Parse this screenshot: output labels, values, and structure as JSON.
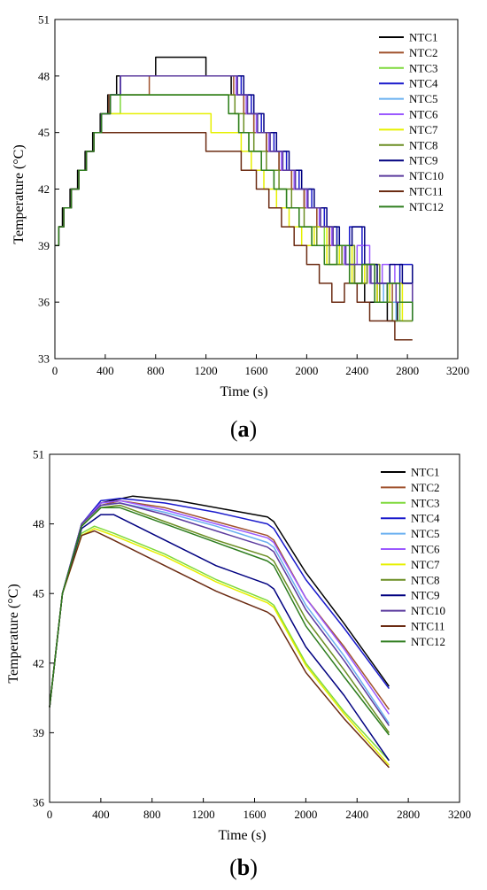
{
  "chart_data": [
    {
      "panel": "a",
      "type": "line",
      "step": true,
      "xlabel": "Time (s)",
      "ylabel": "Temperature (°C)",
      "xlim": [
        0,
        3200
      ],
      "ylim": [
        33,
        51
      ],
      "xticks": [
        0,
        400,
        800,
        1200,
        1600,
        2000,
        2400,
        2800,
        3200
      ],
      "yticks": [
        33,
        36,
        39,
        42,
        45,
        48,
        51
      ],
      "legend_position": "top-right",
      "series": [
        {
          "name": "NTC1",
          "color": "#000000",
          "x": [
            0,
            30,
            60,
            120,
            180,
            240,
            300,
            360,
            420,
            490,
            800,
            1200,
            1400,
            1500,
            1580,
            1680,
            1780,
            1880,
            1980,
            2080,
            2180,
            2280,
            2380,
            2460,
            2560,
            2640,
            2720,
            2840
          ],
          "y": [
            39,
            40,
            41,
            42,
            43,
            44,
            45,
            46,
            47,
            48,
            49,
            48,
            47,
            46,
            45,
            44,
            43,
            42,
            41,
            40,
            39,
            38,
            37,
            36,
            37,
            35,
            36,
            35
          ]
        },
        {
          "name": "NTC2",
          "color": "#a0522d",
          "x": [
            0,
            30,
            70,
            130,
            190,
            250,
            310,
            370,
            430,
            500,
            750,
            1420,
            1500,
            1580,
            1680,
            1780,
            1880,
            1980,
            2080,
            2180,
            2280,
            2380,
            2480,
            2580,
            2680,
            2780,
            2840
          ],
          "y": [
            39,
            40,
            41,
            42,
            43,
            44,
            45,
            46,
            47,
            47,
            48,
            47,
            46,
            45,
            44,
            43,
            42,
            41,
            40,
            39,
            38,
            37,
            38,
            36,
            37,
            37,
            37
          ]
        },
        {
          "name": "NTC3",
          "color": "#7fd93c",
          "x": [
            0,
            30,
            70,
            130,
            190,
            250,
            310,
            370,
            430,
            520,
            1200,
            1380,
            1460,
            1540,
            1640,
            1740,
            1840,
            1940,
            2040,
            2140,
            2240,
            2340,
            2440,
            2540,
            2640,
            2740,
            2840
          ],
          "y": [
            39,
            40,
            41,
            42,
            43,
            44,
            45,
            46,
            46,
            47,
            47,
            46,
            45,
            44,
            43,
            42,
            41,
            40,
            39,
            40,
            38,
            37,
            38,
            36,
            36,
            35,
            35
          ]
        },
        {
          "name": "NTC4",
          "color": "#1a1acc",
          "x": [
            0,
            30,
            70,
            130,
            190,
            250,
            310,
            370,
            440,
            520,
            1480,
            1560,
            1640,
            1740,
            1840,
            1940,
            2040,
            2140,
            2240,
            2340,
            2440,
            2540,
            2640,
            2740,
            2840
          ],
          "y": [
            39,
            40,
            41,
            42,
            43,
            44,
            45,
            46,
            47,
            48,
            47,
            46,
            45,
            44,
            43,
            42,
            41,
            40,
            39,
            40,
            38,
            37,
            37,
            38,
            38
          ]
        },
        {
          "name": "NTC5",
          "color": "#6ab0f0",
          "x": [
            0,
            30,
            70,
            130,
            190,
            250,
            310,
            370,
            440,
            520,
            1450,
            1530,
            1610,
            1710,
            1810,
            1910,
            2010,
            2110,
            2210,
            2310,
            2410,
            2510,
            2610,
            2710,
            2840
          ],
          "y": [
            39,
            40,
            41,
            42,
            43,
            44,
            45,
            46,
            47,
            48,
            47,
            46,
            45,
            44,
            43,
            42,
            41,
            40,
            39,
            38,
            38,
            37,
            36,
            35,
            36
          ]
        },
        {
          "name": "NTC6",
          "color": "#9b59ff",
          "x": [
            0,
            30,
            70,
            130,
            190,
            250,
            310,
            370,
            440,
            520,
            1440,
            1520,
            1600,
            1700,
            1800,
            1900,
            2000,
            2100,
            2200,
            2300,
            2400,
            2500,
            2600,
            2700,
            2840
          ],
          "y": [
            39,
            40,
            41,
            42,
            43,
            44,
            45,
            46,
            47,
            48,
            47,
            46,
            45,
            44,
            43,
            42,
            41,
            40,
            39,
            38,
            39,
            37,
            38,
            37,
            36
          ]
        },
        {
          "name": "NTC7",
          "color": "#e6f000",
          "x": [
            0,
            30,
            70,
            130,
            190,
            250,
            310,
            370,
            430,
            500,
            1240,
            1480,
            1560,
            1660,
            1760,
            1860,
            1960,
            2060,
            2160,
            2260,
            2360,
            2460,
            2560,
            2660,
            2760,
            2840
          ],
          "y": [
            39,
            40,
            41,
            42,
            43,
            44,
            45,
            46,
            46,
            46,
            45,
            44,
            43,
            42,
            41,
            40,
            39,
            40,
            38,
            39,
            37,
            38,
            36,
            37,
            35,
            35
          ]
        },
        {
          "name": "NTC8",
          "color": "#6b8e23",
          "x": [
            0,
            30,
            70,
            130,
            190,
            250,
            310,
            370,
            440,
            520,
            1430,
            1500,
            1580,
            1680,
            1780,
            1880,
            1980,
            2080,
            2180,
            2280,
            2380,
            2480,
            2580,
            2680,
            2840
          ],
          "y": [
            39,
            40,
            41,
            42,
            43,
            44,
            45,
            46,
            47,
            47,
            46,
            45,
            44,
            43,
            42,
            41,
            40,
            39,
            38,
            39,
            37,
            38,
            36,
            35,
            35
          ]
        },
        {
          "name": "NTC9",
          "color": "#000080",
          "x": [
            0,
            30,
            70,
            130,
            190,
            250,
            310,
            370,
            440,
            520,
            1500,
            1580,
            1660,
            1760,
            1860,
            1960,
            2060,
            2160,
            2260,
            2360,
            2460,
            2560,
            2660,
            2760,
            2840
          ],
          "y": [
            39,
            40,
            41,
            42,
            43,
            44,
            45,
            46,
            47,
            48,
            47,
            46,
            45,
            44,
            43,
            42,
            41,
            40,
            39,
            40,
            38,
            37,
            38,
            37,
            38
          ]
        },
        {
          "name": "NTC10",
          "color": "#5b3a9e",
          "x": [
            0,
            30,
            70,
            130,
            190,
            250,
            310,
            370,
            440,
            520,
            1450,
            1530,
            1610,
            1710,
            1810,
            1910,
            2010,
            2110,
            2210,
            2310,
            2410,
            2510,
            2610,
            2710,
            2840
          ],
          "y": [
            39,
            40,
            41,
            42,
            43,
            44,
            45,
            46,
            47,
            48,
            47,
            46,
            45,
            44,
            43,
            42,
            41,
            40,
            39,
            38,
            38,
            37,
            37,
            36,
            37
          ]
        },
        {
          "name": "NTC11",
          "color": "#6b2b12",
          "x": [
            0,
            30,
            70,
            130,
            190,
            250,
            310,
            370,
            430,
            560,
            1200,
            1480,
            1600,
            1700,
            1800,
            1900,
            2000,
            2100,
            2200,
            2300,
            2400,
            2500,
            2700,
            2840
          ],
          "y": [
            39,
            40,
            41,
            42,
            43,
            44,
            45,
            45,
            45,
            45,
            44,
            43,
            42,
            41,
            40,
            39,
            38,
            37,
            36,
            37,
            36,
            35,
            34,
            34
          ]
        },
        {
          "name": "NTC12",
          "color": "#2e7d1e",
          "x": [
            0,
            30,
            70,
            130,
            190,
            250,
            310,
            370,
            440,
            520,
            1380,
            1460,
            1540,
            1640,
            1740,
            1840,
            1940,
            2040,
            2140,
            2240,
            2340,
            2440,
            2540,
            2640,
            2740,
            2840
          ],
          "y": [
            39,
            40,
            41,
            42,
            43,
            44,
            45,
            46,
            47,
            47,
            46,
            45,
            44,
            43,
            42,
            41,
            40,
            39,
            38,
            39,
            37,
            38,
            36,
            37,
            36,
            35
          ]
        }
      ]
    },
    {
      "panel": "b",
      "type": "line",
      "step": false,
      "xlabel": "Time (s)",
      "ylabel": "Temperature (°C)",
      "xlim": [
        0,
        3200
      ],
      "ylim": [
        36,
        51
      ],
      "xticks": [
        0,
        400,
        800,
        1200,
        1600,
        2000,
        2400,
        2800,
        3200
      ],
      "yticks": [
        36,
        39,
        42,
        45,
        48,
        51
      ],
      "legend_position": "top-right",
      "series": [
        {
          "name": "NTC1",
          "color": "#000000",
          "x": [
            0,
            100,
            250,
            400,
            650,
            1000,
            1400,
            1700,
            1750,
            2000,
            2300,
            2650
          ],
          "y": [
            40.1,
            45.0,
            48.0,
            48.9,
            49.2,
            49.0,
            48.6,
            48.3,
            48.1,
            45.9,
            43.7,
            41.0
          ]
        },
        {
          "name": "NTC2",
          "color": "#a0522d",
          "x": [
            0,
            100,
            250,
            400,
            550,
            900,
            1300,
            1700,
            1750,
            2000,
            2300,
            2650
          ],
          "y": [
            40.1,
            45.0,
            48.0,
            48.8,
            49.0,
            48.7,
            48.1,
            47.5,
            47.3,
            44.8,
            42.7,
            40.0
          ]
        },
        {
          "name": "NTC3",
          "color": "#7fd93c",
          "x": [
            0,
            100,
            250,
            350,
            500,
            900,
            1300,
            1700,
            1750,
            2000,
            2300,
            2650
          ],
          "y": [
            40.1,
            45.0,
            47.6,
            47.9,
            47.6,
            46.7,
            45.6,
            44.7,
            44.5,
            42.0,
            39.9,
            37.8
          ]
        },
        {
          "name": "NTC4",
          "color": "#1a1acc",
          "x": [
            0,
            100,
            250,
            400,
            550,
            900,
            1300,
            1700,
            1750,
            2000,
            2300,
            2650
          ],
          "y": [
            40.1,
            45.0,
            48.0,
            49.0,
            49.1,
            48.9,
            48.5,
            48.0,
            47.8,
            45.6,
            43.5,
            40.9
          ]
        },
        {
          "name": "NTC5",
          "color": "#6ab0f0",
          "x": [
            0,
            100,
            250,
            400,
            550,
            900,
            1300,
            1700,
            1750,
            2000,
            2300,
            2650
          ],
          "y": [
            40.1,
            45.0,
            48.0,
            48.8,
            48.9,
            48.5,
            47.9,
            47.2,
            47.0,
            44.5,
            42.3,
            39.4
          ]
        },
        {
          "name": "NTC6",
          "color": "#9b59ff",
          "x": [
            0,
            100,
            250,
            400,
            550,
            900,
            1300,
            1700,
            1750,
            2000,
            2300,
            2650
          ],
          "y": [
            40.1,
            45.0,
            48.0,
            48.9,
            49.0,
            48.6,
            48.0,
            47.4,
            47.2,
            44.8,
            42.6,
            39.8
          ]
        },
        {
          "name": "NTC7",
          "color": "#e6f000",
          "x": [
            0,
            100,
            250,
            350,
            500,
            900,
            1300,
            1700,
            1750,
            2000,
            2300,
            2650
          ],
          "y": [
            40.1,
            45.0,
            47.5,
            47.8,
            47.5,
            46.6,
            45.5,
            44.6,
            44.4,
            41.9,
            39.8,
            37.6
          ]
        },
        {
          "name": "NTC8",
          "color": "#6b8e23",
          "x": [
            0,
            100,
            250,
            400,
            550,
            900,
            1300,
            1700,
            1750,
            2000,
            2300,
            2650
          ],
          "y": [
            40.1,
            45.0,
            47.9,
            48.7,
            48.8,
            48.1,
            47.3,
            46.6,
            46.4,
            43.9,
            41.7,
            39.0
          ]
        },
        {
          "name": "NTC9",
          "color": "#000080",
          "x": [
            0,
            100,
            250,
            400,
            500,
            900,
            1300,
            1700,
            1750,
            2000,
            2300,
            2650
          ],
          "y": [
            40.1,
            45.0,
            47.8,
            48.4,
            48.4,
            47.3,
            46.2,
            45.4,
            45.2,
            42.7,
            40.6,
            37.8
          ]
        },
        {
          "name": "NTC10",
          "color": "#5b3a9e",
          "x": [
            0,
            100,
            250,
            400,
            550,
            900,
            1300,
            1700,
            1750,
            2000,
            2300,
            2650
          ],
          "y": [
            40.1,
            45.0,
            48.0,
            48.8,
            48.9,
            48.4,
            47.7,
            47.0,
            46.8,
            44.3,
            42.1,
            39.3
          ]
        },
        {
          "name": "NTC11",
          "color": "#6b2b12",
          "x": [
            0,
            100,
            250,
            350,
            500,
            900,
            1300,
            1700,
            1750,
            2000,
            2300,
            2650
          ],
          "y": [
            40.1,
            45.0,
            47.5,
            47.7,
            47.3,
            46.2,
            45.1,
            44.2,
            44.0,
            41.6,
            39.6,
            37.5
          ]
        },
        {
          "name": "NTC12",
          "color": "#2e7d1e",
          "x": [
            0,
            100,
            250,
            400,
            550,
            900,
            1300,
            1700,
            1750,
            2000,
            2300,
            2650
          ],
          "y": [
            40.1,
            45.0,
            47.9,
            48.7,
            48.7,
            48.0,
            47.2,
            46.4,
            46.2,
            43.6,
            41.4,
            38.9
          ]
        }
      ]
    }
  ],
  "labels": {
    "a": "a",
    "b": "b"
  }
}
